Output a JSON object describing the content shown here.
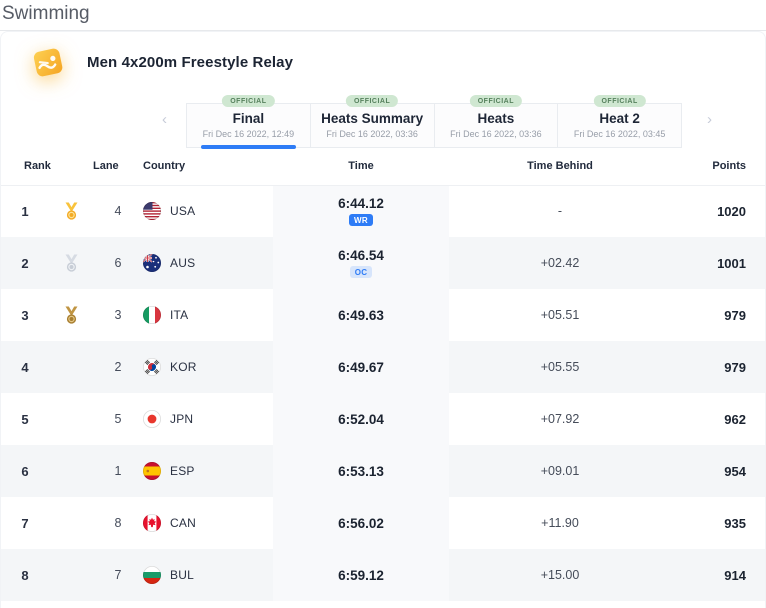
{
  "page": {
    "title": "Swimming"
  },
  "event": {
    "title": "Men 4x200m Freestyle Relay",
    "icon": "swimming-pictogram"
  },
  "tabs": {
    "prev_icon": "‹",
    "next_icon": "›",
    "items": [
      {
        "label": "Final",
        "date": "Fri Dec 16 2022, 12:49",
        "badge": "OFFICIAL",
        "active": true
      },
      {
        "label": "Heats Summary",
        "date": "Fri Dec 16 2022, 03:36",
        "badge": "OFFICIAL",
        "active": false
      },
      {
        "label": "Heats",
        "date": "Fri Dec 16 2022, 03:36",
        "badge": "OFFICIAL",
        "active": false
      },
      {
        "label": "Heat 2",
        "date": "Fri Dec 16 2022, 03:45",
        "badge": "OFFICIAL",
        "active": false
      }
    ]
  },
  "table": {
    "headers": {
      "rank": "Rank",
      "lane": "Lane",
      "country": "Country",
      "time": "Time",
      "time_behind": "Time Behind",
      "points": "Points"
    },
    "rows": [
      {
        "rank": "1",
        "medal": "gold",
        "lane": "4",
        "country": "USA",
        "time": "6:44.12",
        "time_badge": "WR",
        "time_badge_style": "solid",
        "time_behind": "-",
        "points": "1020"
      },
      {
        "rank": "2",
        "medal": "silver",
        "lane": "6",
        "country": "AUS",
        "time": "6:46.54",
        "time_badge": "OC",
        "time_badge_style": "light",
        "time_behind": "+02.42",
        "points": "1001"
      },
      {
        "rank": "3",
        "medal": "bronze",
        "lane": "3",
        "country": "ITA",
        "time": "6:49.63",
        "time_badge": "",
        "time_badge_style": "",
        "time_behind": "+05.51",
        "points": "979"
      },
      {
        "rank": "4",
        "medal": "",
        "lane": "2",
        "country": "KOR",
        "time": "6:49.67",
        "time_badge": "",
        "time_badge_style": "",
        "time_behind": "+05.55",
        "points": "979"
      },
      {
        "rank": "5",
        "medal": "",
        "lane": "5",
        "country": "JPN",
        "time": "6:52.04",
        "time_badge": "",
        "time_badge_style": "",
        "time_behind": "+07.92",
        "points": "962"
      },
      {
        "rank": "6",
        "medal": "",
        "lane": "1",
        "country": "ESP",
        "time": "6:53.13",
        "time_badge": "",
        "time_badge_style": "",
        "time_behind": "+09.01",
        "points": "954"
      },
      {
        "rank": "7",
        "medal": "",
        "lane": "8",
        "country": "CAN",
        "time": "6:56.02",
        "time_badge": "",
        "time_badge_style": "",
        "time_behind": "+11.90",
        "points": "935"
      },
      {
        "rank": "8",
        "medal": "",
        "lane": "7",
        "country": "BUL",
        "time": "6:59.12",
        "time_badge": "",
        "time_badge_style": "",
        "time_behind": "+15.00",
        "points": "914"
      }
    ]
  },
  "colors": {
    "accent_blue": "#2e7cf6",
    "official_badge_bg": "#cfe7d1",
    "official_badge_text": "#56815d",
    "record_badge_light_bg": "#d7e5fb",
    "medals": {
      "gold": {
        "strap": "#f9c33c",
        "disc": "#f3ab26",
        "ring": "#fde39a"
      },
      "silver": {
        "strap": "#d6dbe3",
        "disc": "#c7cdd6",
        "ring": "#eef1f5"
      },
      "bronze": {
        "strap": "#c09543",
        "disc": "#a87e2f",
        "ring": "#e3c787"
      }
    }
  }
}
